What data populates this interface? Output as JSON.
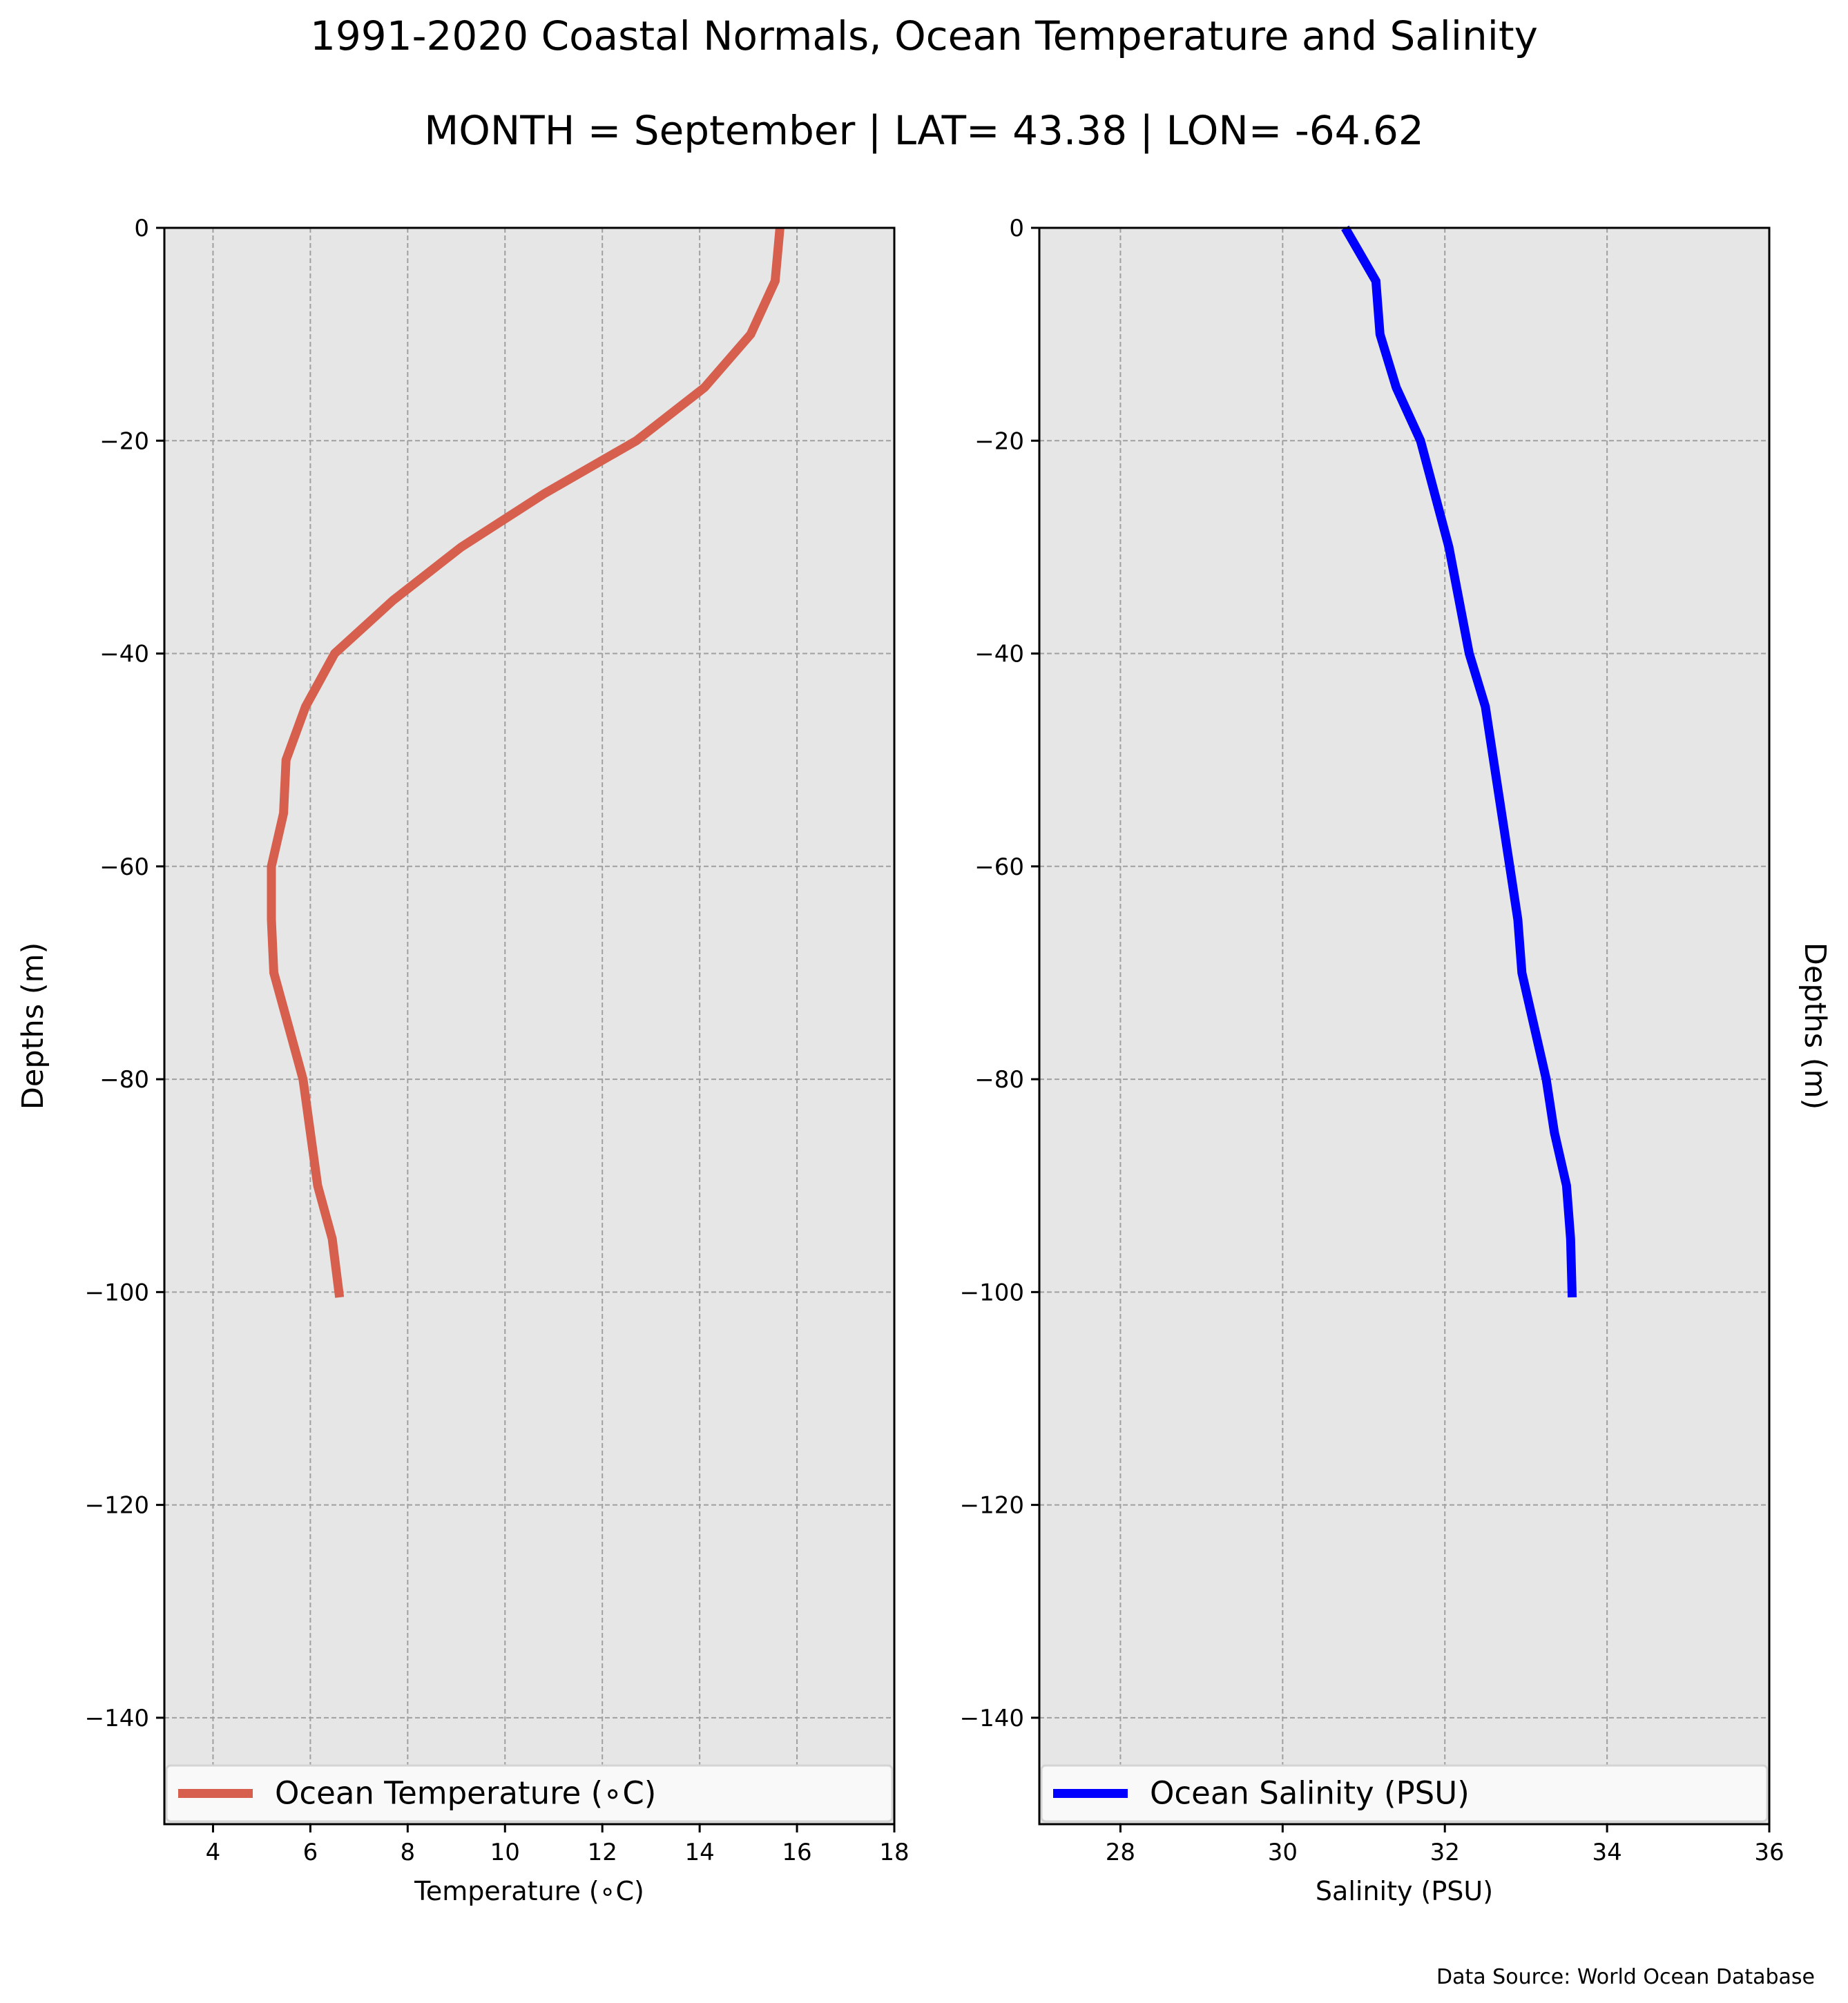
{
  "title": "1991-2020 Coastal Normals, Ocean Temperature and Salinity",
  "subtitle": "MONTH = September | LAT= 43.38 | LON= -64.62",
  "source": "Data Source: World Ocean Database",
  "colors": {
    "background": "#e6e6e6",
    "grid": "#a0a0a0",
    "temperature": "#d65f4e",
    "salinity": "#0000ff"
  },
  "chart_data": [
    {
      "type": "line",
      "xlabel": "Temperature (∘C)",
      "ylabel": "Depths (m)",
      "xlim": [
        3,
        18
      ],
      "ylim": [
        -150,
        0
      ],
      "xticks": [
        4,
        6,
        8,
        10,
        12,
        14,
        16,
        18
      ],
      "yticks": [
        0,
        -20,
        -40,
        -60,
        -80,
        -100,
        -120,
        -140
      ],
      "grid": true,
      "legend_position": "bottom",
      "series": [
        {
          "name": "Ocean Temperature (∘C)",
          "color": "#d65f4e",
          "x": [
            15.65,
            15.55,
            15.05,
            14.1,
            12.7,
            10.8,
            9.1,
            7.7,
            6.5,
            5.9,
            5.5,
            5.45,
            5.2,
            5.2,
            5.25,
            5.55,
            5.85,
            6.15,
            6.45,
            6.6
          ],
          "y": [
            0,
            -5,
            -10,
            -15,
            -20,
            -25,
            -30,
            -35,
            -40,
            -45,
            -50,
            -55,
            -60,
            -65,
            -70,
            -75,
            -80,
            -90,
            -95,
            -100.5
          ]
        }
      ]
    },
    {
      "type": "line",
      "xlabel": "Salinity (PSU)",
      "ylabel": "Depths (m)",
      "xlim": [
        27,
        36
      ],
      "ylim": [
        -150,
        0
      ],
      "xticks": [
        28,
        30,
        32,
        34,
        36
      ],
      "yticks": [
        0,
        -20,
        -40,
        -60,
        -80,
        -100,
        -120,
        -140
      ],
      "grid": true,
      "legend_position": "bottom",
      "series": [
        {
          "name": "Ocean Salinity (PSU)",
          "color": "#0000ff",
          "x": [
            30.77,
            31.15,
            31.2,
            31.4,
            31.7,
            32.05,
            32.3,
            32.5,
            32.7,
            32.8,
            32.9,
            32.95,
            33.25,
            33.35,
            33.5,
            33.55,
            33.57
          ],
          "y": [
            0,
            -5,
            -10,
            -15,
            -20,
            -30,
            -40,
            -45,
            -55,
            -60,
            -65,
            -70,
            -80,
            -85,
            -90,
            -95,
            -100.5
          ]
        }
      ]
    }
  ]
}
